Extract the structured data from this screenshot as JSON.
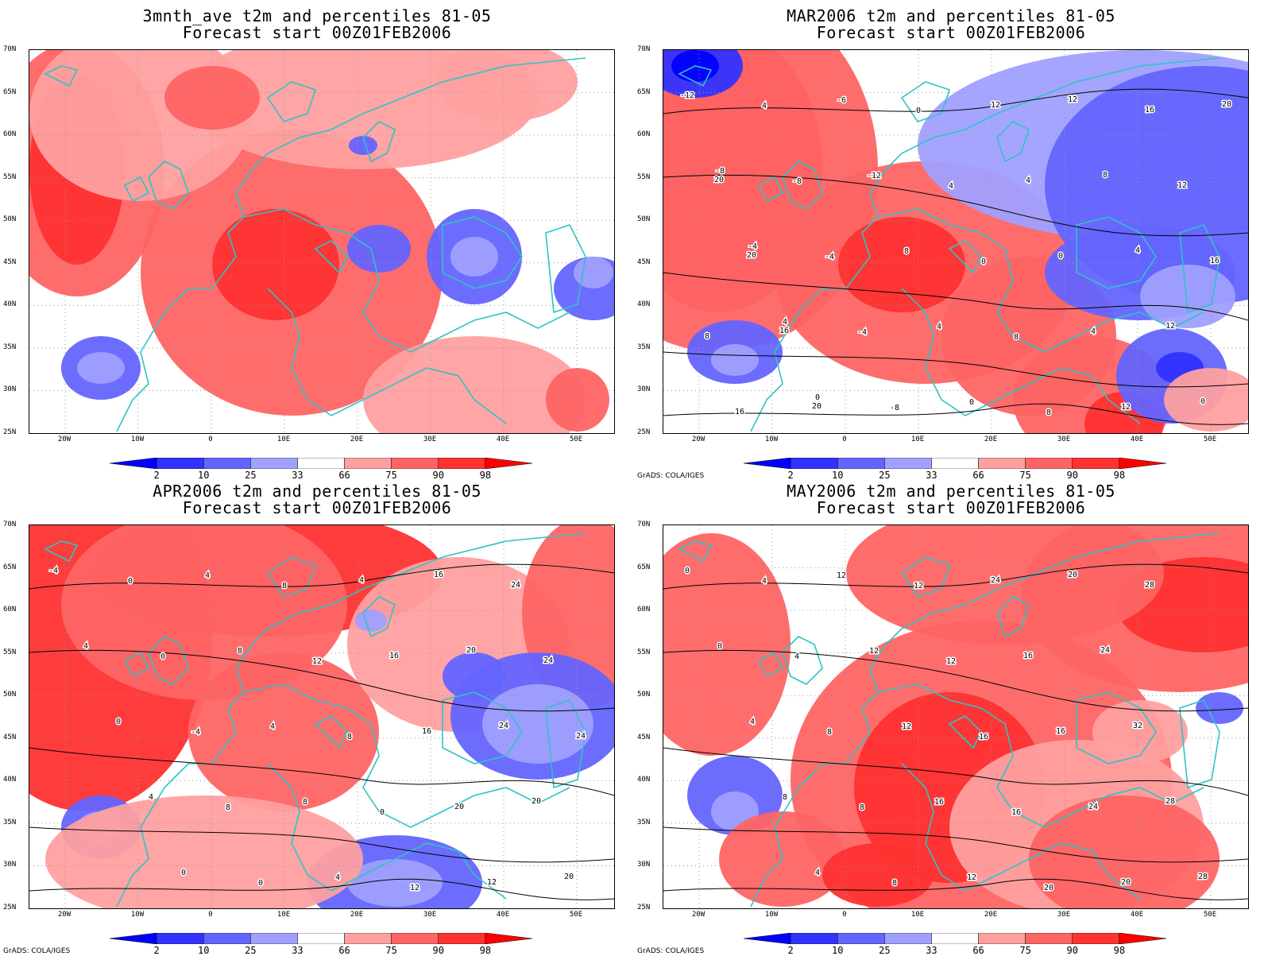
{
  "panels": [
    {
      "title_line1": "3mnth_ave t2m and percentiles 81-05",
      "title_line2": "Forecast start 00Z01FEB2006",
      "credit": "",
      "contour_labels": []
    },
    {
      "title_line1": "MAR2006 t2m and percentiles 81-05",
      "title_line2": "Forecast start 00Z01FEB2006",
      "credit": "GrADS: COLA/IGES",
      "contour_labels": [
        "-12",
        "-8",
        "-4",
        "4",
        "0",
        "4",
        "-8",
        "-4",
        "-4",
        "-8",
        "-6",
        "-12",
        "8",
        "4",
        "0",
        "0",
        "4",
        "0",
        "8",
        "8",
        "12",
        "4",
        "0",
        "4",
        "12",
        "12",
        "8",
        "4",
        "12",
        "0",
        "16",
        "12",
        "16",
        "8",
        "16",
        "20",
        "20",
        "20",
        "16",
        "20"
      ]
    },
    {
      "title_line1": "APR2006 t2m and percentiles 81-05",
      "title_line2": "Forecast start 00Z01FEB2006",
      "credit": "GrADS: COLA/IGES",
      "contour_labels": [
        "-4",
        "4",
        "0",
        "4",
        "0",
        "0",
        "0",
        "-4",
        "8",
        "0",
        "4",
        "8",
        "4",
        "8",
        "4",
        "8",
        "12",
        "8",
        "0",
        "12",
        "4",
        "16",
        "16",
        "20",
        "12",
        "16",
        "20",
        "24",
        "20",
        "20",
        "24",
        "24",
        "24"
      ]
    },
    {
      "title_line1": "MAY2006 t2m and percentiles 81-05",
      "title_line2": "Forecast start 00Z01FEB2006",
      "credit": "GrADS: COLA/IGES",
      "contour_labels": [
        "0",
        "0",
        "4",
        "8",
        "4",
        "4",
        "4",
        "8",
        "8",
        "8",
        "12",
        "12",
        "12",
        "16",
        "12",
        "12",
        "12",
        "16",
        "16",
        "20",
        "24",
        "16",
        "16",
        "24",
        "20",
        "20",
        "24",
        "32",
        "28",
        "28",
        "28"
      ]
    }
  ],
  "lat_ticks": [
    "70N",
    "65N",
    "60N",
    "55N",
    "50N",
    "45N",
    "40N",
    "35N",
    "30N",
    "25N"
  ],
  "lon_ticks": [
    "20W",
    "10W",
    "0",
    "10E",
    "20E",
    "30E",
    "40E",
    "50E"
  ],
  "colorbar": {
    "labels": [
      "2",
      "10",
      "25",
      "33",
      "66",
      "75",
      "90",
      "98"
    ],
    "colors": [
      "#0000ff",
      "#3232ff",
      "#6464ff",
      "#a0a0ff",
      "#ffffff",
      "#ffa0a0",
      "#ff6464",
      "#ff3232",
      "#ff0000"
    ]
  },
  "colors": {
    "coastline": "#2ec4c4",
    "contour": "#000000",
    "grid": "#999999"
  }
}
